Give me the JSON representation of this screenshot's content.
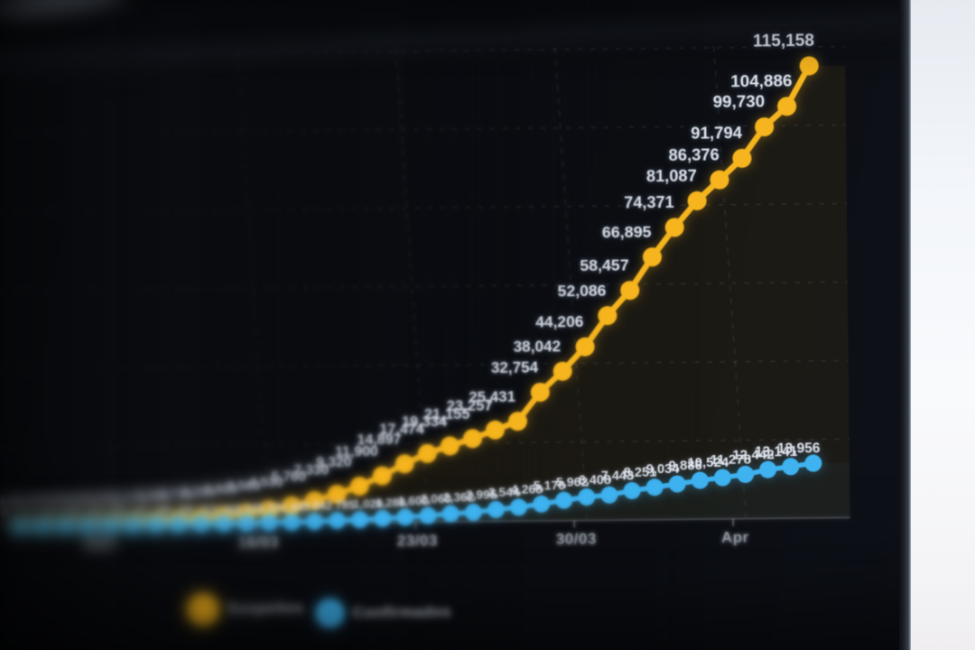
{
  "chart_data": {
    "type": "line",
    "title": "",
    "xlabel": "",
    "ylabel": "",
    "ylim": [
      0,
      120000
    ],
    "grid": {
      "horizontal_step": 20000,
      "style": "dashed",
      "on": true
    },
    "legend_position": "bottom",
    "x_ticks": [
      {
        "index": 4,
        "label": "9/03"
      },
      {
        "index": 11,
        "label": "16/03"
      },
      {
        "index": 18,
        "label": "23/03"
      },
      {
        "index": 25,
        "label": "30/03"
      },
      {
        "index": 32,
        "label": "Apr"
      }
    ],
    "series": [
      {
        "name": "Suspeitos",
        "color": "#f6b51e",
        "fill": "rgba(246,181,30,0.065)",
        "values": [
          250,
          320,
          410,
          520,
          660,
          840,
          1070,
          1360,
          1730,
          2200,
          2800,
          3560,
          4530,
          5760,
          7330,
          9320,
          11900,
          14897,
          17474,
          19334,
          21155,
          23257,
          25431,
          32754,
          38042,
          44206,
          52086,
          58457,
          66895,
          74371,
          81087,
          86376,
          91794,
          99730,
          104886,
          115158
        ],
        "labels": [
          "250",
          "320",
          "410",
          "520",
          "660",
          "840",
          "1,070",
          "1,360",
          "1,730",
          "2,200",
          "2,800",
          "3,560",
          "4,530",
          "5,760",
          "7,330",
          "9,320",
          "11,900",
          "14,897",
          "17,474",
          "19,334",
          "21,155",
          "23,257",
          "25,431",
          "32,754",
          "38,042",
          "44,206",
          "52,086",
          "58,457",
          "66,895",
          "74,371",
          "81,087",
          "86,376",
          "91,794",
          "99,730",
          "104,886",
          "115,158"
        ]
      },
      {
        "name": "Confirmados",
        "color": "#3fb3f0",
        "fill": "rgba(63,179,240,0.045)",
        "values": [
          8,
          9,
          13,
          20,
          30,
          39,
          41,
          59,
          59,
          112,
          169,
          245,
          331,
          448,
          642,
          785,
          1020,
          1280,
          1600,
          2060,
          2362,
          2995,
          3544,
          4268,
          5170,
          5962,
          6408,
          7443,
          8251,
          9034,
          9886,
          10524,
          11278,
          12442,
          13141,
          13956
        ],
        "labels": [
          "8",
          "9",
          "13",
          "20",
          "30",
          "39",
          "41",
          "59",
          "59",
          "112",
          "169",
          "245",
          "331",
          "448",
          "642",
          "785",
          "1,020",
          "1,280",
          "1,600",
          "2,060",
          "2,362",
          "2,995",
          "3,544",
          "4,268",
          "5,170",
          "5,962",
          "6,408",
          "7,443",
          "8,251",
          "9,034",
          "9,886",
          "10,524",
          "11,278",
          "12,442",
          "13,141",
          "13,956"
        ]
      }
    ]
  },
  "legend": {
    "suspeitos_label": "Suspeitos",
    "confirmados_label": "Confirmados"
  }
}
